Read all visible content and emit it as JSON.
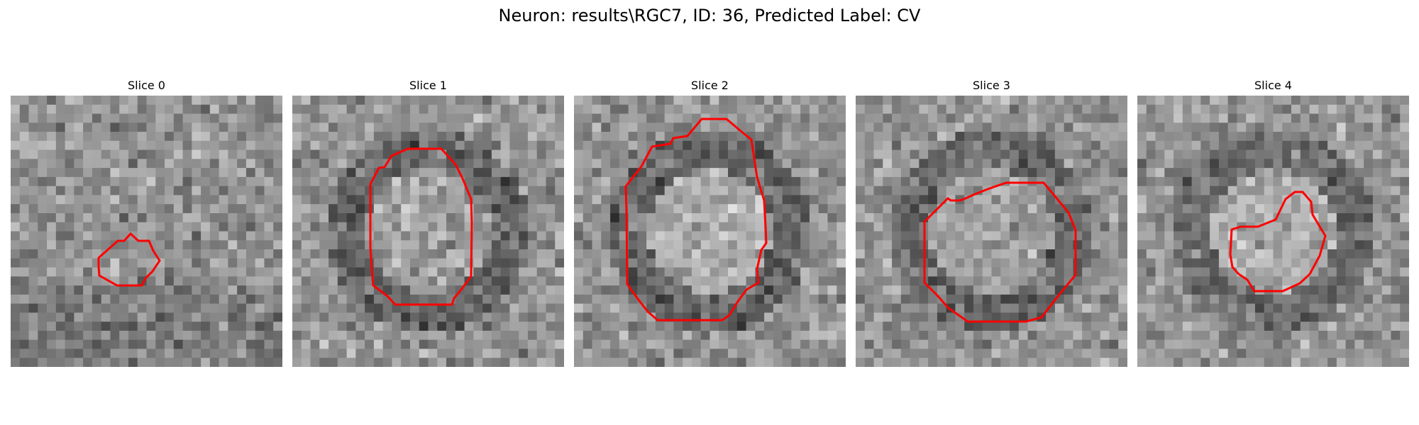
{
  "figure": {
    "title": "Neuron: results\\RGC7, ID: 36, Predicted Label: CV"
  },
  "colors": {
    "background": "#ffffff",
    "roi_outline": "#ff0000"
  },
  "slices": [
    {
      "label": "Slice 0"
    },
    {
      "label": "Slice 1"
    },
    {
      "label": "Slice 2"
    },
    {
      "label": "Slice 3"
    },
    {
      "label": "Slice 4"
    }
  ]
}
